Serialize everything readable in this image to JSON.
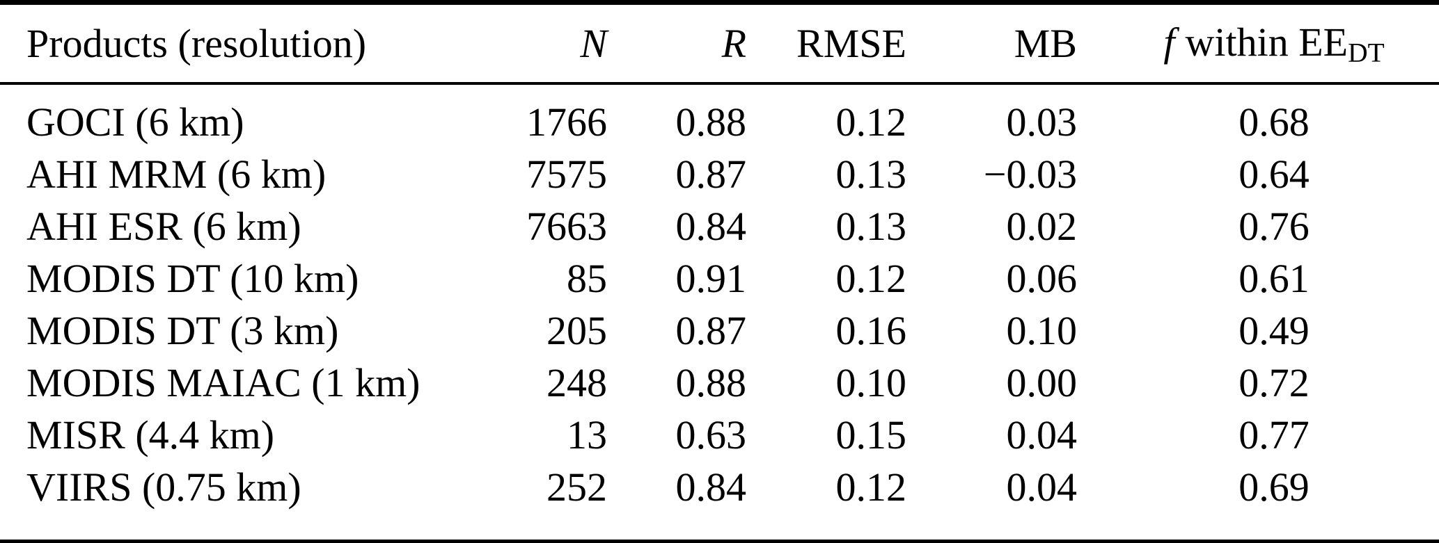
{
  "table": {
    "header": {
      "products": "Products (resolution)",
      "n": "N",
      "r": "R",
      "rmse": "RMSE",
      "mb": "MB",
      "f_symbol": "f",
      "f_text": "within EE",
      "f_subscript": "DT"
    },
    "rows": [
      {
        "product": "GOCI (6 km)",
        "n": "1766",
        "r": "0.88",
        "rmse": "0.12",
        "mb": "0.03",
        "f_within_ee": "0.68"
      },
      {
        "product": "AHI MRM (6 km)",
        "n": "7575",
        "r": "0.87",
        "rmse": "0.13",
        "mb": "−0.03",
        "f_within_ee": "0.64"
      },
      {
        "product": "AHI ESR (6 km)",
        "n": "7663",
        "r": "0.84",
        "rmse": "0.13",
        "mb": "0.02",
        "f_within_ee": "0.76"
      },
      {
        "product": "MODIS DT (10 km)",
        "n": "85",
        "r": "0.91",
        "rmse": "0.12",
        "mb": "0.06",
        "f_within_ee": "0.61"
      },
      {
        "product": "MODIS DT (3 km)",
        "n": "205",
        "r": "0.87",
        "rmse": "0.16",
        "mb": "0.10",
        "f_within_ee": "0.49"
      },
      {
        "product": "MODIS MAIAC (1 km)",
        "n": "248",
        "r": "0.88",
        "rmse": "0.10",
        "mb": "0.00",
        "f_within_ee": "0.72"
      },
      {
        "product": "MISR (4.4 km)",
        "n": "13",
        "r": "0.63",
        "rmse": "0.15",
        "mb": "0.04",
        "f_within_ee": "0.77"
      },
      {
        "product": "VIIRS (0.75 km)",
        "n": "252",
        "r": "0.84",
        "rmse": "0.12",
        "mb": "0.04",
        "f_within_ee": "0.69"
      }
    ]
  },
  "colors": {
    "background": "#ffffff",
    "text": "#000000",
    "rule": "#000000"
  }
}
